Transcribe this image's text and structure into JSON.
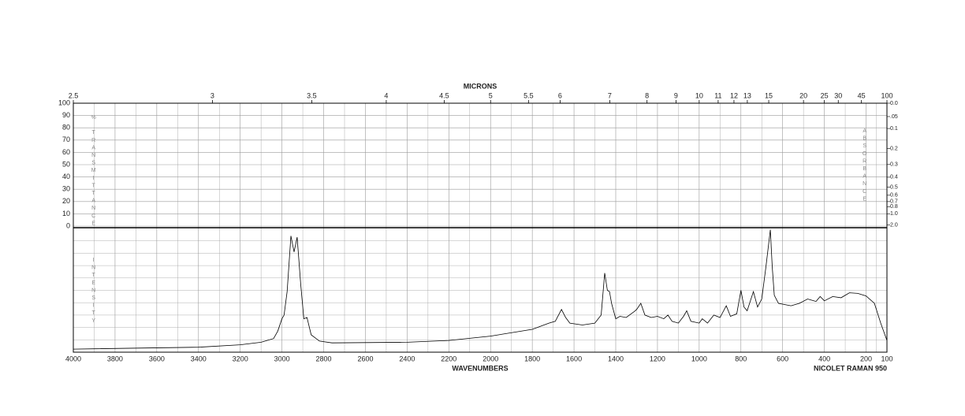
{
  "chart_data": {
    "type": "line",
    "top_axis_label": "MICRONS",
    "x_label": "WAVENUMBERS",
    "footer": "NICOLET RAMAN 950",
    "left_axis_label": "% TRANSMITTANCE",
    "right_axis_label": "ABSORBANCE",
    "intensity_label": "INTENSITY",
    "xlim": [
      4000,
      100
    ],
    "xticks": [
      4000,
      3800,
      3600,
      3400,
      3200,
      3000,
      2800,
      2600,
      2400,
      2200,
      2000,
      1800,
      1600,
      1400,
      1200,
      1000,
      800,
      600,
      400,
      200,
      100
    ],
    "micron_ticks": [
      2.5,
      3,
      3.5,
      4,
      4.5,
      5,
      5.5,
      6,
      7,
      8,
      9,
      10,
      11,
      12,
      13,
      15,
      20,
      25,
      30,
      45,
      100
    ],
    "transmittance_lim": [
      0,
      100
    ],
    "transmittance_ticks": [
      0,
      10,
      20,
      30,
      40,
      50,
      60,
      70,
      80,
      90,
      100
    ],
    "absorbance_ticks": [
      {
        "value": 0,
        "label": "0.0"
      },
      {
        "value": 0.05,
        "label": ".05"
      },
      {
        "value": 0.1,
        "label": "0.1"
      },
      {
        "value": 0.2,
        "label": "0.2"
      },
      {
        "value": 0.3,
        "label": "0.3"
      },
      {
        "value": 0.4,
        "label": "0.4"
      },
      {
        "value": 0.5,
        "label": "0.5"
      },
      {
        "value": 0.6,
        "label": "0.6"
      },
      {
        "value": 0.7,
        "label": "0.7"
      },
      {
        "value": 0.8,
        "label": "0.8"
      },
      {
        "value": 1,
        "label": "1.0"
      },
      {
        "value": 2,
        "label": "2.0"
      }
    ],
    "ylim": [
      0,
      10
    ],
    "color": "#000000",
    "x": [
      4000,
      3400,
      3200,
      3100,
      3040,
      3020,
      3000,
      2990,
      2975,
      2957,
      2942,
      2927,
      2910,
      2895,
      2880,
      2860,
      2820,
      2760,
      2400,
      2200,
      2000,
      1800,
      1720,
      1690,
      1660,
      1640,
      1620,
      1560,
      1500,
      1470,
      1453,
      1440,
      1430,
      1420,
      1400,
      1380,
      1350,
      1310,
      1300,
      1280,
      1260,
      1230,
      1200,
      1170,
      1150,
      1130,
      1100,
      1075,
      1060,
      1040,
      1000,
      985,
      960,
      930,
      900,
      870,
      850,
      820,
      800,
      785,
      770,
      740,
      720,
      700,
      680,
      659,
      650,
      640,
      620,
      560,
      520,
      480,
      440,
      420,
      400,
      360,
      320,
      280,
      240,
      200,
      160,
      130,
      100
    ],
    "values": [
      0.25,
      0.4,
      0.6,
      0.8,
      1.1,
      1.7,
      2.7,
      3.0,
      4.9,
      9.4,
      8.1,
      9.3,
      5.5,
      2.7,
      2.8,
      1.4,
      0.9,
      0.75,
      0.8,
      0.95,
      1.3,
      1.85,
      2.35,
      2.5,
      3.45,
      2.8,
      2.35,
      2.2,
      2.35,
      3.0,
      6.4,
      5.0,
      4.9,
      3.95,
      2.7,
      2.9,
      2.8,
      3.3,
      3.45,
      3.95,
      3.0,
      2.8,
      2.9,
      2.7,
      3.0,
      2.5,
      2.35,
      2.9,
      3.35,
      2.5,
      2.35,
      2.7,
      2.35,
      3.0,
      2.8,
      3.75,
      2.9,
      3.1,
      5.0,
      3.65,
      3.35,
      4.9,
      3.65,
      4.3,
      6.9,
      9.9,
      6.9,
      4.6,
      3.95,
      3.75,
      3.95,
      4.3,
      4.1,
      4.5,
      4.15,
      4.5,
      4.4,
      4.8,
      4.75,
      4.55,
      3.95,
      2.35,
      0.95
    ]
  }
}
